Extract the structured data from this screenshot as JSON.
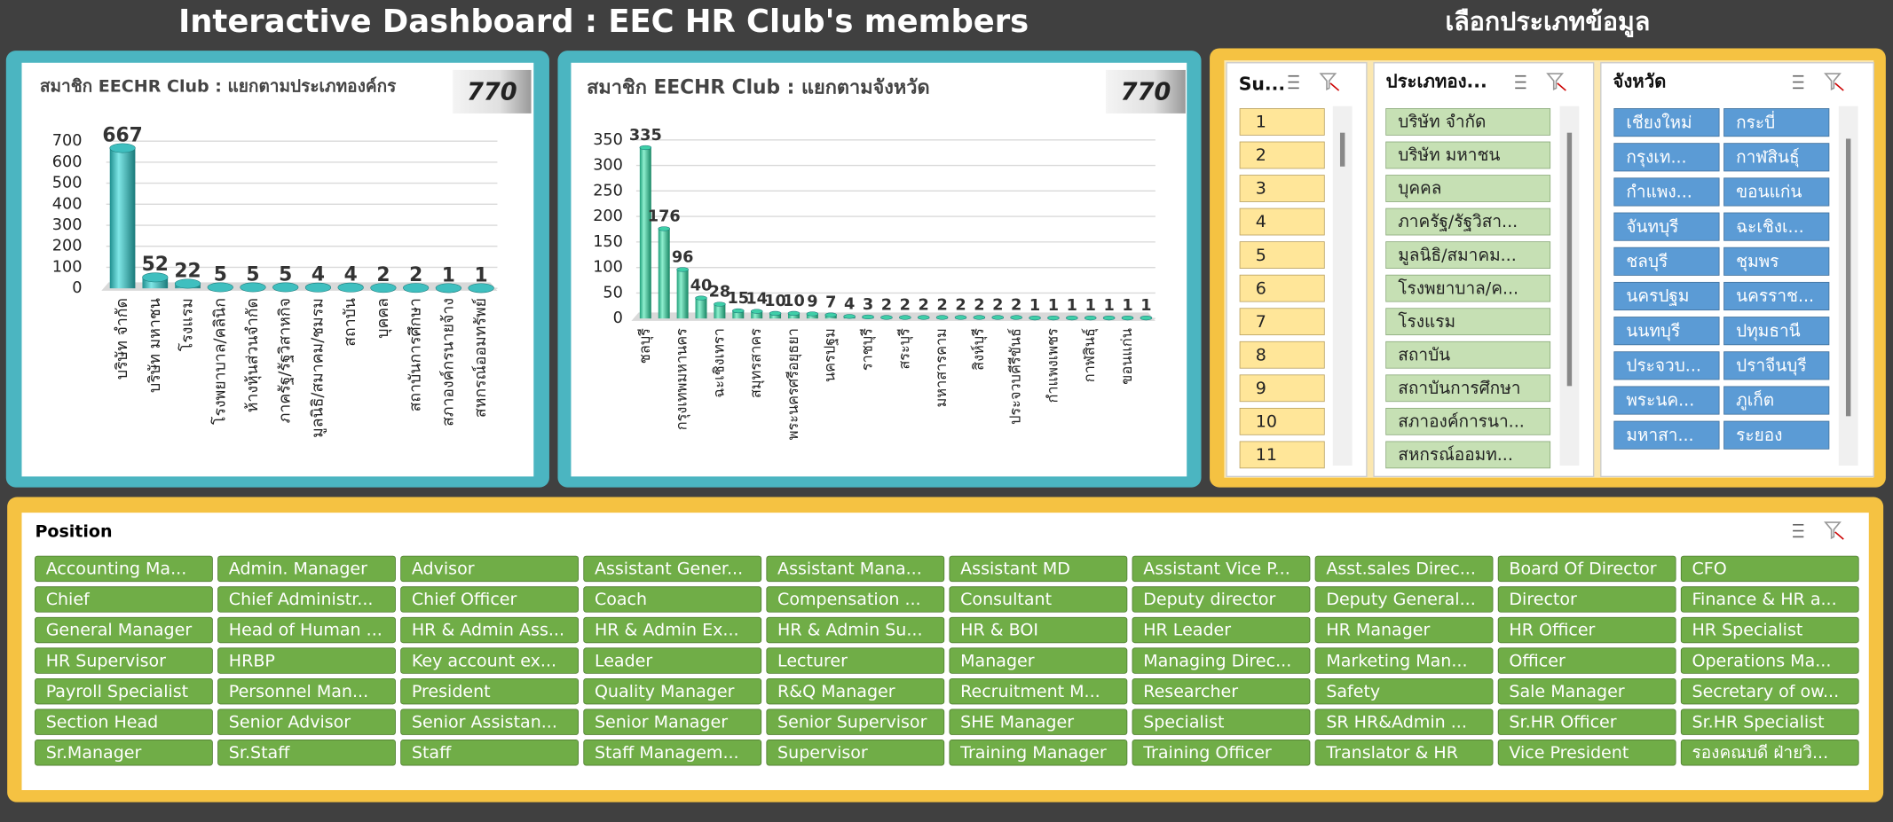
{
  "header": {
    "title": "Interactive Dashboard : EEC HR Club's members",
    "selector_title": "เลือกประเภทข้อมูล"
  },
  "chart_data": [
    {
      "type": "bar",
      "title": "สมาชิก EECHR Club : แยกตามประเภทองค์กร",
      "total": 770,
      "categories": [
        "บริษัท จำกัด",
        "บริษัท มหาชน",
        "โรงแรม",
        "โรงพยาบาล/คลินิก",
        "ห้างหุ้นส่วนจำกัด",
        "ภาครัฐ/รัฐวิสาหกิจ",
        "มูลนิธิ/สมาคม/ชมรม",
        "สถาบัน",
        "บุคคล",
        "สถาบันการศึกษา",
        "สภาองค์กรนายจ้าง",
        "สหกรณ์ออมทรัพย์"
      ],
      "values": [
        667,
        52,
        22,
        5,
        5,
        5,
        4,
        4,
        2,
        2,
        1,
        1
      ],
      "color": "#3fbfbf",
      "ylim": [
        0,
        700
      ],
      "yticks": [
        0,
        100,
        200,
        300,
        400,
        500,
        600,
        700
      ],
      "grid": true
    },
    {
      "type": "bar",
      "title": "สมาชิก  EECHR Club : แยกตามจังหวัด",
      "total": 770,
      "categories": [
        "ชลบุรี",
        null,
        "กรุงเทพมหานคร",
        null,
        "ฉะเชิงเทรา",
        null,
        "สมุทรสาคร",
        null,
        "พระนครศรีอยุธยา",
        null,
        "นครปฐม",
        null,
        "ราชบุรี",
        null,
        "สระบุรี",
        null,
        "มหาสารคาม",
        null,
        "สิงห์บุรี",
        null,
        "ประจวบคีรีขันธ์",
        null,
        "กำแพงเพชร",
        null,
        "กาฬสินธุ์",
        null,
        "ขอนแก่น",
        null
      ],
      "values": [
        335,
        176,
        96,
        40,
        28,
        15,
        14,
        10,
        10,
        9,
        7,
        4,
        3,
        2,
        2,
        2,
        2,
        2,
        2,
        2,
        2,
        1,
        1,
        1,
        1,
        1,
        1,
        1
      ],
      "color": "#3fcfa8",
      "ylim": [
        0,
        350
      ],
      "yticks": [
        0,
        50,
        100,
        150,
        200,
        250,
        300,
        350
      ],
      "grid": true
    }
  ],
  "slicers": [
    {
      "title": "Su...",
      "items": [
        "1",
        "2",
        "3",
        "4",
        "5",
        "6",
        "7",
        "8",
        "9",
        "10",
        "11"
      ]
    },
    {
      "title": "ประเภทอง...",
      "items": [
        "บริษัท จำกัด",
        "บริษัท มหาชน",
        "บุคคล",
        "ภาครัฐ/รัฐวิสา...",
        "มูลนิธิ/สมาคม...",
        "โรงพยาบาล/ค...",
        "โรงแรม",
        "สถาบัน",
        "สถาบันการศึกษา",
        "สภาองค์การนา...",
        "สหกรณ์ออมท..."
      ]
    },
    {
      "title": "จังหวัด",
      "items": [
        "เชียงใหม่",
        "กระบี่",
        "กรุงเท...",
        "กาฬสินธุ์",
        "กำแพง...",
        "ขอนแก่น",
        "จันทบุรี",
        "ฉะเชิงเ...",
        "ชลบุรี",
        "ชุมพร",
        "นครปฐม",
        "นครราช...",
        "นนทบุรี",
        "ปทุมธานี",
        "ประจวบ...",
        "ปราจีนบุรี",
        "พระนค...",
        "ภูเก็ต",
        "มหาสา...",
        "ระยอง"
      ]
    }
  ],
  "position": {
    "title": "Position",
    "items": [
      "Accounting Ma...",
      "Admin. Manager",
      "Advisor",
      "Assistant Gener...",
      "Assistant Mana...",
      "Assistant MD",
      "Assistant Vice P...",
      "Asst.sales Direc...",
      "Board Of Director",
      "CFO",
      "Chief",
      "Chief Administr...",
      "Chief Officer",
      "Coach",
      "Compensation ...",
      "Consultant",
      "Deputy director",
      "Deputy General...",
      "Director",
      "Finance & HR a...",
      "General Manager",
      "Head of Human ...",
      "HR & Admin Ass...",
      "HR & Admin Ex...",
      "HR & Admin Su...",
      "HR & BOI",
      "HR Leader",
      "HR Manager",
      "HR Officer",
      "HR Specialist",
      "HR Supervisor",
      "HRBP",
      "Key account ex...",
      "Leader",
      "Lecturer",
      "Manager",
      "Managing Direc...",
      "Marketing Man...",
      "Officer",
      "Operations Ma...",
      "Payroll Specialist",
      "Personnel Man...",
      "President",
      "Quality Manager",
      "R&Q Manager",
      "Recruitment M...",
      "Researcher",
      "Safety",
      "Sale Manager",
      "Secretary of ow...",
      "Section Head",
      "Senior Advisor",
      "Senior Assistan...",
      "Senior Manager",
      "Senior Supervisor",
      "SHE Manager",
      "Specialist",
      "SR HR&Admin ...",
      "Sr.HR Officer",
      "Sr.HR Specialist",
      "Sr.Manager",
      "Sr.Staff",
      "Staff",
      "Staff Managem...",
      "Supervisor",
      "Training Manager",
      "Training Officer",
      "Translator & HR",
      "Vice President",
      "รองคณบดี ฝ่ายวิ..."
    ]
  }
}
